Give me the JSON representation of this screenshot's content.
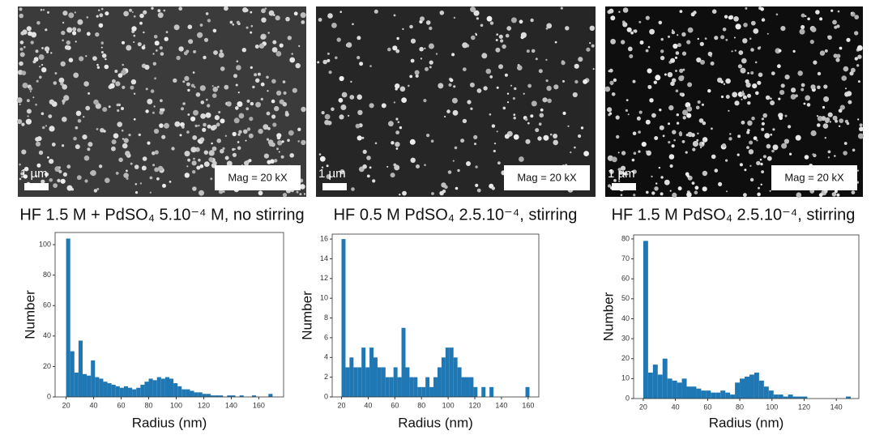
{
  "panels": [
    {
      "scale_bar": "1 µm",
      "mag": "Mag = 20 kX"
    },
    {
      "scale_bar": "1 µm",
      "mag": "Mag = 20 kX"
    },
    {
      "scale_bar": "1 µm",
      "mag": "Mag = 20 kX"
    }
  ],
  "chart_data": [
    {
      "type": "histogram",
      "title": "HF 1.5 M + PdSO₄ 5.10⁻⁴ M, no stirring",
      "x_label": "Radius (nm)",
      "y_label": "Number",
      "color": "#1f77b4",
      "bins": [
        20,
        23,
        26,
        29,
        32,
        35,
        38,
        41,
        44,
        47,
        50,
        53,
        56,
        59,
        62,
        65,
        68,
        71,
        74,
        77,
        80,
        83,
        86,
        89,
        92,
        95,
        98,
        101,
        104,
        107,
        110,
        113,
        116,
        119,
        122,
        125,
        128,
        131,
        134,
        137,
        140,
        143,
        146,
        149,
        152,
        155,
        158,
        161,
        164,
        167,
        170
      ],
      "values": [
        104,
        30,
        16,
        37,
        15,
        14,
        24,
        13,
        12,
        10,
        9,
        8,
        7,
        6,
        7,
        6,
        5,
        6,
        8,
        10,
        12,
        11,
        13,
        12,
        13,
        12,
        9,
        7,
        5,
        5,
        4,
        3,
        3,
        2,
        2,
        1,
        1,
        1,
        0,
        1,
        1,
        0,
        1,
        0,
        0,
        1,
        0,
        0,
        0,
        2
      ],
      "xlim": [
        12,
        178
      ],
      "xticks": [
        20,
        40,
        60,
        80,
        100,
        120,
        140,
        160
      ],
      "ylim": [
        0,
        108
      ],
      "yticks": [
        0,
        20,
        40,
        60,
        80,
        100
      ]
    },
    {
      "type": "histogram",
      "title": "HF 0.5 M PdSO₄ 2.5.10⁻⁴, stirring",
      "x_label": "Radius (nm)",
      "y_label": "Number",
      "color": "#1f77b4",
      "bins": [
        20,
        23,
        26,
        29,
        32,
        35,
        38,
        41,
        44,
        47,
        50,
        53,
        56,
        59,
        62,
        65,
        68,
        71,
        74,
        77,
        80,
        83,
        86,
        89,
        92,
        95,
        98,
        101,
        104,
        107,
        110,
        113,
        116,
        119,
        122,
        125,
        128,
        131,
        134,
        137,
        140,
        143,
        146,
        149,
        152,
        155,
        158,
        161
      ],
      "values": [
        16,
        3,
        4,
        3,
        3,
        5,
        3,
        5,
        4,
        3,
        3,
        2,
        2,
        3,
        2,
        7,
        3,
        2,
        2,
        1,
        1,
        2,
        1,
        2,
        3,
        4,
        5,
        5,
        4,
        3,
        2,
        2,
        2,
        1,
        0,
        1,
        0,
        1,
        0,
        0,
        0,
        0,
        0,
        0,
        0,
        0,
        1
      ],
      "xlim": [
        13,
        168
      ],
      "xticks": [
        20,
        40,
        60,
        80,
        100,
        120,
        140,
        160
      ],
      "ylim": [
        0,
        16.5
      ],
      "yticks": [
        0,
        2,
        4,
        6,
        8,
        10,
        12,
        14,
        16
      ]
    },
    {
      "type": "histogram",
      "title": "HF 1.5 M PdSO₄ 2.5.10⁻⁴, stirring",
      "x_label": "Radius (nm)",
      "y_label": "Number",
      "color": "#1f77b4",
      "bins": [
        20,
        23,
        26,
        29,
        32,
        35,
        38,
        41,
        44,
        47,
        50,
        53,
        56,
        59,
        62,
        65,
        68,
        71,
        74,
        77,
        80,
        83,
        86,
        89,
        92,
        95,
        98,
        101,
        104,
        107,
        110,
        113,
        116,
        119,
        122,
        125,
        128,
        131,
        134,
        137,
        140,
        143,
        146,
        149
      ],
      "values": [
        79,
        13,
        17,
        12,
        20,
        10,
        9,
        8,
        10,
        6,
        6,
        5,
        4,
        4,
        3,
        3,
        4,
        3,
        2,
        8,
        10,
        11,
        12,
        13,
        9,
        6,
        4,
        2,
        2,
        1,
        2,
        1,
        1,
        1,
        0,
        0,
        0,
        0,
        0,
        0,
        0,
        0,
        1
      ],
      "xlim": [
        14,
        154
      ],
      "xticks": [
        20,
        40,
        60,
        80,
        100,
        120,
        140
      ],
      "ylim": [
        0,
        82
      ],
      "yticks": [
        0,
        10,
        20,
        30,
        40,
        50,
        60,
        70,
        80
      ]
    }
  ]
}
